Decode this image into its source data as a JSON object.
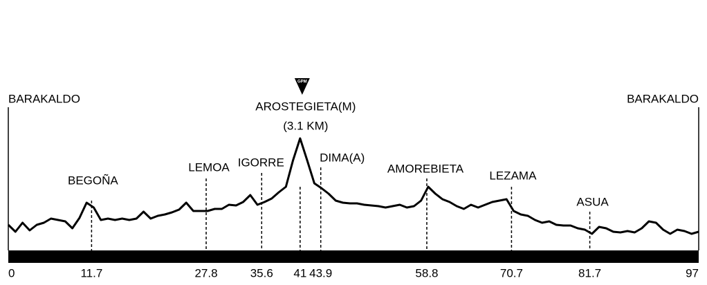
{
  "chart_data": {
    "type": "line",
    "x": [
      0,
      1,
      2,
      3,
      4,
      5,
      6,
      7,
      8,
      9,
      10,
      11,
      12,
      13,
      14,
      15,
      16,
      17,
      18,
      19,
      20,
      21,
      22,
      23,
      24,
      25,
      26,
      27,
      28,
      29,
      30,
      31,
      32,
      33,
      34,
      35,
      36,
      37,
      38,
      39,
      40,
      41,
      42,
      43,
      44,
      45,
      46,
      47,
      48,
      49,
      50,
      51,
      52,
      53,
      54,
      55,
      56,
      57,
      58,
      59,
      60,
      61,
      62,
      63,
      64,
      65,
      66,
      67,
      68,
      69,
      70,
      71,
      72,
      73,
      74,
      75,
      76,
      77,
      78,
      79,
      80,
      81,
      82,
      83,
      84,
      85,
      86,
      87,
      88,
      89,
      90,
      91,
      92,
      93,
      94,
      95,
      96,
      97
    ],
    "values": [
      37,
      27,
      40,
      29,
      37,
      40,
      46,
      44,
      42,
      32,
      47,
      69,
      62,
      44,
      46,
      44,
      46,
      44,
      46,
      56,
      46,
      50,
      52,
      55,
      59,
      69,
      57,
      57,
      57,
      60,
      60,
      66,
      65,
      70,
      80,
      66,
      70,
      75,
      84,
      92,
      130,
      162,
      130,
      97,
      90,
      82,
      72,
      69,
      68,
      68,
      66,
      65,
      64,
      62,
      64,
      66,
      62,
      64,
      72,
      92,
      82,
      74,
      70,
      64,
      60,
      66,
      62,
      66,
      70,
      72,
      74,
      57,
      52,
      50,
      44,
      40,
      42,
      37,
      36,
      36,
      32,
      30,
      24,
      34,
      32,
      27,
      26,
      28,
      26,
      32,
      42,
      40,
      30,
      24,
      30,
      28,
      24,
      27
    ],
    "color": "#000000",
    "xlim": [
      0,
      97
    ],
    "ylim": [
      0,
      170
    ],
    "xticks": [
      0,
      11.7,
      27.8,
      35.6,
      41,
      43.9,
      58.8,
      70.7,
      81.7,
      97
    ],
    "annotations": [
      {
        "x": 0,
        "label": "BARAKALDO"
      },
      {
        "x": 11.7,
        "label": "BEGOÑA"
      },
      {
        "x": 27.8,
        "label": "LEMOA"
      },
      {
        "x": 35.6,
        "label": "IGORRE"
      },
      {
        "x": 41,
        "label": "AROSTEGIETA(M)",
        "sublabel": "(3.1 KM)",
        "marker": "GPM"
      },
      {
        "x": 43.9,
        "label": "DIMA(A)"
      },
      {
        "x": 58.8,
        "label": "AMOREBIETA"
      },
      {
        "x": 70.7,
        "label": "LEZAMA"
      },
      {
        "x": 81.7,
        "label": "ASUA"
      },
      {
        "x": 97,
        "label": "BARAKALDO"
      }
    ]
  }
}
